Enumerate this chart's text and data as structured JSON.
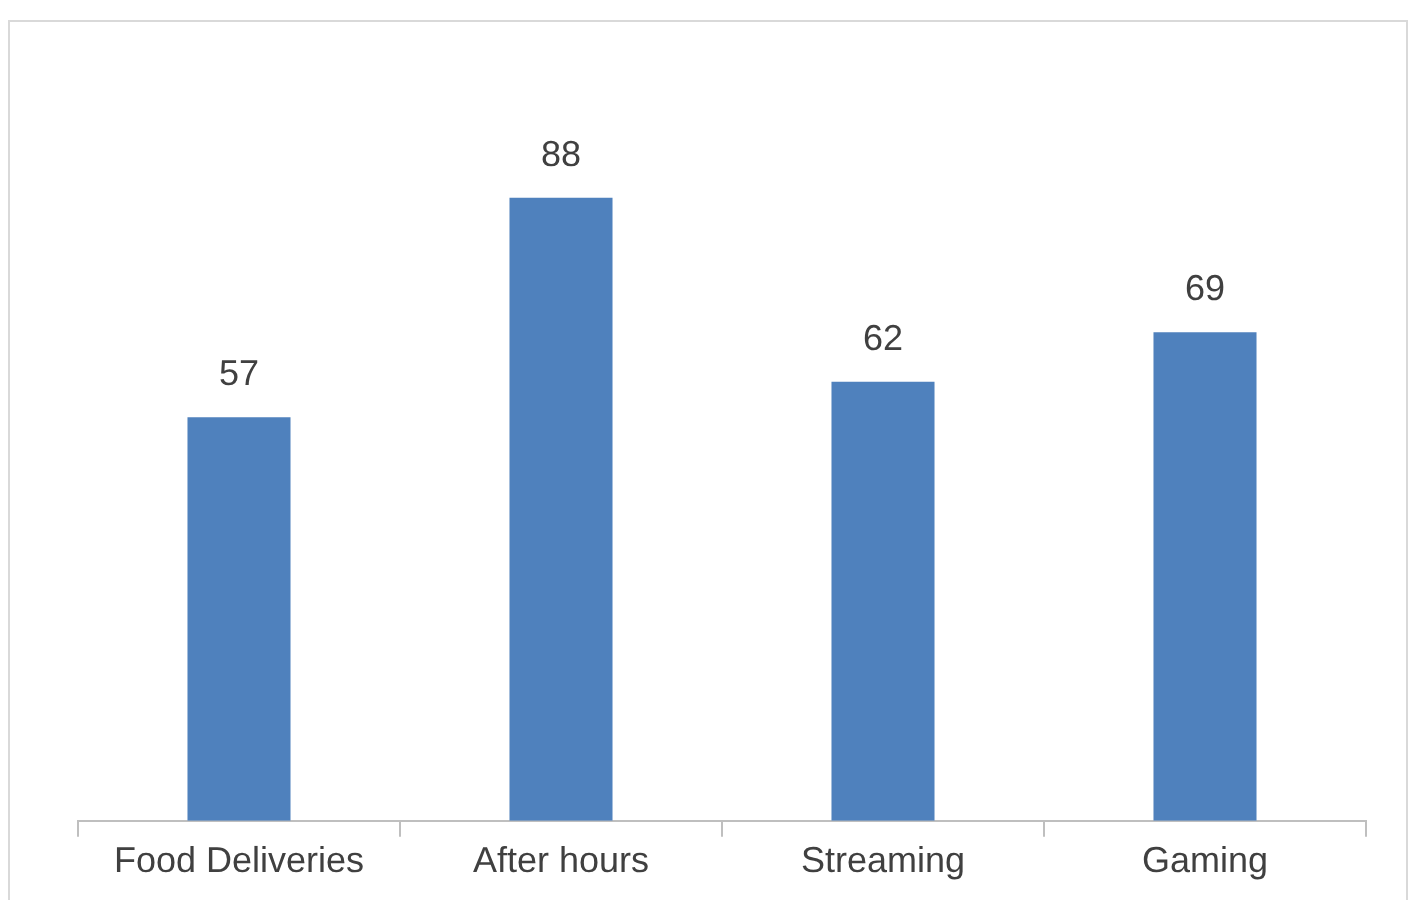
{
  "chart_data": {
    "type": "bar",
    "categories": [
      "Food Deliveries",
      "After hours",
      "Streaming",
      "Gaming"
    ],
    "values": [
      57,
      88,
      62,
      69
    ],
    "color": "#4f81bd",
    "data_labels": true,
    "grid": false,
    "legend": false
  }
}
